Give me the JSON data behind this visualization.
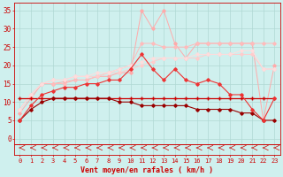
{
  "background_color": "#cff0ee",
  "grid_color": "#b0d8d4",
  "x_values": [
    0,
    1,
    2,
    3,
    4,
    5,
    6,
    7,
    8,
    9,
    10,
    11,
    12,
    13,
    14,
    15,
    16,
    17,
    18,
    19,
    20,
    21,
    22,
    23
  ],
  "series": [
    {
      "name": "light_pink_spiky",
      "color": "#ffaaaa",
      "linewidth": 0.7,
      "marker": "D",
      "markersize": 1.8,
      "values": [
        7,
        11,
        15,
        15,
        15.5,
        16,
        16,
        17,
        17,
        18,
        18,
        35,
        30,
        35,
        26,
        22,
        26,
        26,
        26,
        26,
        26,
        26,
        5,
        20
      ]
    },
    {
      "name": "medium_pink_rising",
      "color": "#ffbbbb",
      "linewidth": 0.7,
      "marker": "D",
      "markersize": 1.8,
      "values": [
        8,
        12,
        15,
        15,
        15,
        16,
        16,
        17,
        18,
        19,
        20,
        26,
        26,
        25,
        25,
        25,
        26,
        26,
        26,
        26,
        26,
        26,
        26,
        26
      ]
    },
    {
      "name": "pink_smooth",
      "color": "#ffcccc",
      "linewidth": 0.7,
      "marker": "D",
      "markersize": 1.8,
      "values": [
        8,
        12,
        15,
        16,
        16,
        17,
        17,
        17,
        18,
        18,
        19,
        20,
        21,
        22,
        22,
        22,
        22,
        23,
        23,
        23,
        23,
        23,
        19,
        19
      ]
    },
    {
      "name": "light_salmon_broad",
      "color": "#ffdddd",
      "linewidth": 0.7,
      "marker": "D",
      "markersize": 1.8,
      "values": [
        8,
        12,
        15,
        16,
        16,
        17,
        17,
        18,
        18,
        19,
        20,
        21,
        22,
        22,
        22,
        22,
        23,
        23,
        23,
        23,
        24,
        24,
        19,
        19
      ]
    },
    {
      "name": "red_flat",
      "color": "#cc0000",
      "linewidth": 0.9,
      "marker": "+",
      "markersize": 2.5,
      "values": [
        11,
        11,
        11,
        11,
        11,
        11,
        11,
        11,
        11,
        11,
        11,
        11,
        11,
        11,
        11,
        11,
        11,
        11,
        11,
        11,
        11,
        11,
        11,
        11
      ]
    },
    {
      "name": "dark_red_curve",
      "color": "#990000",
      "linewidth": 0.8,
      "marker": "D",
      "markersize": 1.8,
      "values": [
        5,
        8,
        10,
        11,
        11,
        11,
        11,
        11,
        11,
        10,
        10,
        9,
        9,
        9,
        9,
        9,
        8,
        8,
        8,
        8,
        7,
        7,
        5,
        5
      ]
    },
    {
      "name": "red_mid_jagged",
      "color": "#ee3333",
      "linewidth": 0.8,
      "marker": "D",
      "markersize": 1.8,
      "values": [
        5,
        9,
        12,
        13,
        14,
        14,
        15,
        15,
        16,
        16,
        19,
        23,
        19,
        16,
        19,
        16,
        15,
        16,
        15,
        12,
        12,
        8,
        5,
        11
      ]
    }
  ],
  "xlabel": "Vent moyen/en rafales ( km/h )",
  "xlabel_color": "#cc0000",
  "xlabel_fontsize": 6,
  "xtick_labels": [
    "0",
    "1",
    "2",
    "3",
    "4",
    "5",
    "6",
    "7",
    "8",
    "9",
    "10",
    "11",
    "12",
    "13",
    "14",
    "15",
    "16",
    "17",
    "18",
    "19",
    "20",
    "21",
    "22",
    "23"
  ],
  "ytick_values": [
    0,
    5,
    10,
    15,
    20,
    25,
    30,
    35
  ],
  "ylim": [
    -4.5,
    37
  ],
  "xlim": [
    -0.5,
    23.5
  ],
  "tick_color": "#cc0000",
  "tick_fontsize": 5,
  "spine_color": "#cc0000",
  "arrow_color": "#cc0000"
}
